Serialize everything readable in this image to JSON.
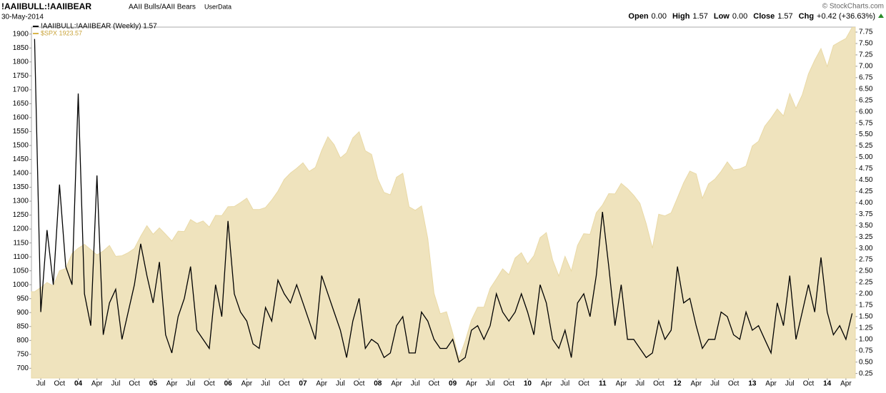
{
  "header": {
    "symbol": "!AAIIBULL:!AAIIBEAR",
    "description": "AAII Bulls/AAII Bears",
    "source": "UserData",
    "date": "30-May-2014",
    "copyright": "© StockCharts.com",
    "quote": [
      {
        "label": "Open",
        "value": "0.00"
      },
      {
        "label": "High",
        "value": "1.57"
      },
      {
        "label": "Low",
        "value": "0.00"
      },
      {
        "label": "Close",
        "value": "1.57"
      },
      {
        "label": "Chg",
        "value": "+0.42 (+36.63%)"
      }
    ]
  },
  "chart_data": {
    "type": "line",
    "categories": [
      null,
      "Jul",
      null,
      null,
      "Oct",
      null,
      null,
      "04",
      null,
      null,
      "Apr",
      null,
      null,
      "Jul",
      null,
      null,
      "Oct",
      null,
      null,
      "05",
      null,
      null,
      "Apr",
      null,
      null,
      "Jul",
      null,
      null,
      "Oct",
      null,
      null,
      "06",
      null,
      null,
      "Apr",
      null,
      null,
      "Jul",
      null,
      null,
      "Oct",
      null,
      null,
      "07",
      null,
      null,
      "Apr",
      null,
      null,
      "Jul",
      null,
      null,
      "Oct",
      null,
      null,
      "08",
      null,
      null,
      "Apr",
      null,
      null,
      "Jul",
      null,
      null,
      "Oct",
      null,
      null,
      "09",
      null,
      null,
      "Apr",
      null,
      null,
      "Jul",
      null,
      null,
      "Oct",
      null,
      null,
      "10",
      null,
      null,
      "Apr",
      null,
      null,
      "Jul",
      null,
      null,
      "Oct",
      null,
      null,
      "11",
      null,
      null,
      "Apr",
      null,
      null,
      "Jul",
      null,
      null,
      "Oct",
      null,
      null,
      "12",
      null,
      null,
      "Apr",
      null,
      null,
      "Jul",
      null,
      null,
      "Oct",
      null,
      null,
      "13",
      null,
      null,
      "Apr",
      null,
      null,
      "Jul",
      null,
      null,
      "Oct",
      null,
      null,
      "14",
      null,
      null,
      "Apr",
      null
    ],
    "series": [
      {
        "name": "$SPX 1923.57",
        "type": "area",
        "color": "#efe3bd",
        "axis": "y",
        "values": [
          975,
          990,
          1008,
          996,
          1050,
          1058,
          1112,
          1131,
          1145,
          1126,
          1107,
          1121,
          1141,
          1102,
          1104,
          1115,
          1130,
          1174,
          1212,
          1181,
          1204,
          1181,
          1157,
          1192,
          1191,
          1234,
          1220,
          1229,
          1207,
          1249,
          1248,
          1280,
          1281,
          1295,
          1311,
          1270,
          1270,
          1277,
          1304,
          1336,
          1378,
          1401,
          1418,
          1438,
          1407,
          1421,
          1482,
          1531,
          1503,
          1455,
          1474,
          1527,
          1549,
          1481,
          1468,
          1379,
          1331,
          1323,
          1386,
          1400,
          1280,
          1267,
          1283,
          1166,
          969,
          896,
          903,
          826,
          735,
          798,
          873,
          919,
          919,
          987,
          1021,
          1057,
          1036,
          1096,
          1115,
          1074,
          1104,
          1169,
          1187,
          1089,
          1031,
          1102,
          1049,
          1141,
          1183,
          1181,
          1258,
          1286,
          1327,
          1326,
          1364,
          1345,
          1321,
          1292,
          1219,
          1131,
          1253,
          1247,
          1258,
          1312,
          1366,
          1408,
          1398,
          1310,
          1362,
          1379,
          1407,
          1441,
          1412,
          1416,
          1426,
          1498,
          1515,
          1569,
          1598,
          1631,
          1606,
          1686,
          1633,
          1682,
          1757,
          1806,
          1848,
          1783,
          1859,
          1872,
          1884,
          1924
        ]
      },
      {
        "name": "!AAIIBULL:!AAIIBEAR (Weekly) 1.57",
        "type": "line",
        "color": "#000000",
        "axis": "y2",
        "values": [
          7.6,
          1.6,
          3.4,
          2.2,
          4.4,
          2.6,
          2.2,
          6.4,
          2.0,
          1.3,
          4.6,
          1.1,
          1.8,
          2.1,
          1.0,
          1.6,
          2.2,
          3.1,
          2.4,
          1.8,
          2.7,
          1.1,
          0.7,
          1.5,
          1.9,
          2.6,
          1.2,
          1.0,
          0.8,
          2.2,
          1.5,
          3.6,
          2.0,
          1.6,
          1.4,
          0.9,
          0.8,
          1.7,
          1.4,
          2.3,
          2.0,
          1.8,
          2.2,
          1.8,
          1.4,
          1.0,
          2.4,
          2.0,
          1.6,
          1.2,
          0.6,
          1.4,
          1.9,
          0.8,
          1.0,
          0.9,
          0.6,
          0.7,
          1.3,
          1.5,
          0.7,
          0.7,
          1.6,
          1.4,
          1.0,
          0.8,
          0.8,
          1.0,
          0.5,
          0.6,
          1.2,
          1.3,
          1.0,
          1.3,
          2.0,
          1.6,
          1.4,
          1.6,
          2.0,
          1.6,
          1.1,
          2.2,
          1.8,
          1.0,
          0.8,
          1.2,
          0.6,
          1.8,
          2.0,
          1.5,
          2.4,
          3.8,
          2.6,
          1.3,
          2.2,
          1.0,
          1.0,
          0.8,
          0.6,
          0.7,
          1.4,
          1.0,
          1.2,
          2.6,
          1.8,
          1.9,
          1.3,
          0.8,
          1.0,
          1.0,
          1.6,
          1.5,
          1.1,
          1.0,
          1.6,
          1.2,
          1.3,
          1.0,
          0.7,
          1.8,
          1.3,
          2.4,
          1.0,
          1.6,
          2.2,
          1.6,
          2.8,
          1.6,
          1.1,
          1.3,
          1.0,
          1.57
        ]
      }
    ],
    "ylim": [
      665,
      1925
    ],
    "yticks": [
      700,
      750,
      800,
      850,
      900,
      950,
      1000,
      1050,
      1100,
      1150,
      1200,
      1250,
      1300,
      1350,
      1400,
      1450,
      1500,
      1550,
      1600,
      1650,
      1700,
      1750,
      1800,
      1850,
      1900
    ],
    "y2lim": [
      0.15,
      7.86
    ],
    "y2ticks": [
      0.25,
      {
        "value": 0.5,
        "label": "0.50"
      },
      0.75,
      {
        "value": 1,
        "label": "1.00"
      },
      1.25,
      {
        "value": 1.5,
        "label": "1.50"
      },
      1.75,
      {
        "value": 2,
        "label": "2.00"
      },
      2.25,
      {
        "value": 2.5,
        "label": "2.50"
      },
      2.75,
      {
        "value": 3,
        "label": "3.00"
      },
      3.25,
      {
        "value": 3.5,
        "label": "3.50"
      },
      3.75,
      {
        "value": 4,
        "label": "4.00"
      },
      4.25,
      {
        "value": 4.5,
        "label": "4.50"
      },
      4.75,
      {
        "value": 5,
        "label": "5.00"
      },
      5.25,
      {
        "value": 5.5,
        "label": "5.50"
      },
      5.75,
      {
        "value": 6,
        "label": "6.00"
      },
      6.25,
      {
        "value": 6.5,
        "label": "6.50"
      },
      6.75,
      {
        "value": 7,
        "label": "7.00"
      },
      7.25,
      {
        "value": 7.5,
        "label": "7.50"
      },
      7.75
    ]
  }
}
